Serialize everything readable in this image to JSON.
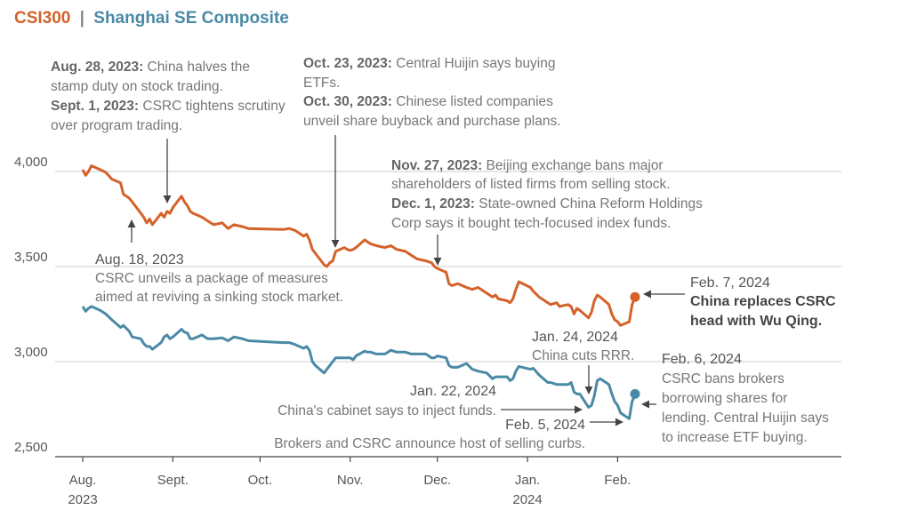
{
  "title": {
    "csi_label": "CSI300",
    "separator": "|",
    "sse_label": "Shanghai SE Composite"
  },
  "colors": {
    "csi300": "#d4622a",
    "sse": "#4a8aa6",
    "grid": "#cccccc",
    "axis": "#444444"
  },
  "chart_data": {
    "type": "line",
    "ylim": [
      2500,
      4100
    ],
    "yticks": [
      "4,000",
      "3,500",
      "3,000",
      "2,500"
    ],
    "ytick_values": [
      4000,
      3500,
      3000,
      2500
    ],
    "x_range": [
      "2023-08-01",
      "2024-02-16"
    ],
    "xticks": [
      {
        "label": "Aug.",
        "sub": "2023",
        "date": "2023-08-01"
      },
      {
        "label": "Sept.",
        "sub": "",
        "date": "2023-09-01"
      },
      {
        "label": "Oct.",
        "sub": "",
        "date": "2023-10-01"
      },
      {
        "label": "Nov.",
        "sub": "",
        "date": "2023-11-01"
      },
      {
        "label": "Dec.",
        "sub": "",
        "date": "2023-12-01"
      },
      {
        "label": "Jan.",
        "sub": "2024",
        "date": "2024-01-01"
      },
      {
        "label": "Feb.",
        "sub": "",
        "date": "2024-02-01"
      }
    ],
    "series": [
      {
        "name": "CSI300",
        "points": [
          [
            "2023-08-01",
            4010
          ],
          [
            "2023-08-02",
            3980
          ],
          [
            "2023-08-03",
            4000
          ],
          [
            "2023-08-04",
            4030
          ],
          [
            "2023-08-07",
            4010
          ],
          [
            "2023-08-09",
            3995
          ],
          [
            "2023-08-11",
            3960
          ],
          [
            "2023-08-14",
            3940
          ],
          [
            "2023-08-15",
            3880
          ],
          [
            "2023-08-16",
            3870
          ],
          [
            "2023-08-17",
            3860
          ],
          [
            "2023-08-18",
            3840
          ],
          [
            "2023-08-21",
            3780
          ],
          [
            "2023-08-22",
            3760
          ],
          [
            "2023-08-23",
            3730
          ],
          [
            "2023-08-24",
            3750
          ],
          [
            "2023-08-25",
            3720
          ],
          [
            "2023-08-28",
            3780
          ],
          [
            "2023-08-29",
            3760
          ],
          [
            "2023-08-30",
            3790
          ],
          [
            "2023-08-31",
            3780
          ],
          [
            "2023-09-01",
            3810
          ],
          [
            "2023-09-04",
            3870
          ],
          [
            "2023-09-05",
            3840
          ],
          [
            "2023-09-06",
            3820
          ],
          [
            "2023-09-07",
            3790
          ],
          [
            "2023-09-08",
            3780
          ],
          [
            "2023-09-11",
            3760
          ],
          [
            "2023-09-13",
            3740
          ],
          [
            "2023-09-15",
            3720
          ],
          [
            "2023-09-18",
            3730
          ],
          [
            "2023-09-20",
            3700
          ],
          [
            "2023-09-22",
            3720
          ],
          [
            "2023-09-25",
            3710
          ],
          [
            "2023-09-27",
            3700
          ],
          [
            "2023-10-09",
            3695
          ],
          [
            "2023-10-11",
            3700
          ],
          [
            "2023-10-13",
            3690
          ],
          [
            "2023-10-16",
            3660
          ],
          [
            "2023-10-17",
            3670
          ],
          [
            "2023-10-18",
            3640
          ],
          [
            "2023-10-19",
            3590
          ],
          [
            "2023-10-20",
            3570
          ],
          [
            "2023-10-23",
            3510
          ],
          [
            "2023-10-24",
            3500
          ],
          [
            "2023-10-25",
            3520
          ],
          [
            "2023-10-26",
            3530
          ],
          [
            "2023-10-27",
            3580
          ],
          [
            "2023-10-30",
            3600
          ],
          [
            "2023-10-31",
            3590
          ],
          [
            "2023-11-01",
            3585
          ],
          [
            "2023-11-02",
            3590
          ],
          [
            "2023-11-03",
            3600
          ],
          [
            "2023-11-06",
            3640
          ],
          [
            "2023-11-07",
            3630
          ],
          [
            "2023-11-08",
            3620
          ],
          [
            "2023-11-10",
            3610
          ],
          [
            "2023-11-13",
            3600
          ],
          [
            "2023-11-15",
            3610
          ],
          [
            "2023-11-17",
            3590
          ],
          [
            "2023-11-20",
            3580
          ],
          [
            "2023-11-22",
            3560
          ],
          [
            "2023-11-24",
            3540
          ],
          [
            "2023-11-27",
            3530
          ],
          [
            "2023-11-29",
            3520
          ],
          [
            "2023-11-30",
            3500
          ],
          [
            "2023-12-01",
            3490
          ],
          [
            "2023-12-04",
            3470
          ],
          [
            "2023-12-05",
            3410
          ],
          [
            "2023-12-06",
            3400
          ],
          [
            "2023-12-08",
            3410
          ],
          [
            "2023-12-11",
            3390
          ],
          [
            "2023-12-13",
            3380
          ],
          [
            "2023-12-15",
            3390
          ],
          [
            "2023-12-18",
            3360
          ],
          [
            "2023-12-20",
            3340
          ],
          [
            "2023-12-21",
            3350
          ],
          [
            "2023-12-22",
            3330
          ],
          [
            "2023-12-25",
            3320
          ],
          [
            "2023-12-26",
            3310
          ],
          [
            "2023-12-27",
            3330
          ],
          [
            "2023-12-28",
            3380
          ],
          [
            "2023-12-29",
            3420
          ],
          [
            "2024-01-02",
            3390
          ],
          [
            "2024-01-03",
            3370
          ],
          [
            "2024-01-05",
            3340
          ],
          [
            "2024-01-08",
            3310
          ],
          [
            "2024-01-09",
            3300
          ],
          [
            "2024-01-11",
            3310
          ],
          [
            "2024-01-12",
            3290
          ],
          [
            "2024-01-15",
            3300
          ],
          [
            "2024-01-16",
            3290
          ],
          [
            "2024-01-17",
            3250
          ],
          [
            "2024-01-18",
            3280
          ],
          [
            "2024-01-19",
            3270
          ],
          [
            "2024-01-22",
            3230
          ],
          [
            "2024-01-23",
            3260
          ],
          [
            "2024-01-24",
            3320
          ],
          [
            "2024-01-25",
            3350
          ],
          [
            "2024-01-26",
            3340
          ],
          [
            "2024-01-29",
            3300
          ],
          [
            "2024-01-30",
            3250
          ],
          [
            "2024-01-31",
            3220
          ],
          [
            "2024-02-01",
            3210
          ],
          [
            "2024-02-02",
            3190
          ],
          [
            "2024-02-05",
            3210
          ],
          [
            "2024-02-06",
            3300
          ],
          [
            "2024-02-07",
            3340
          ]
        ]
      },
      {
        "name": "Shanghai SE Composite",
        "points": [
          [
            "2023-08-01",
            3290
          ],
          [
            "2023-08-02",
            3265
          ],
          [
            "2023-08-03",
            3280
          ],
          [
            "2023-08-04",
            3290
          ],
          [
            "2023-08-07",
            3270
          ],
          [
            "2023-08-09",
            3250
          ],
          [
            "2023-08-11",
            3220
          ],
          [
            "2023-08-14",
            3180
          ],
          [
            "2023-08-15",
            3190
          ],
          [
            "2023-08-16",
            3175
          ],
          [
            "2023-08-17",
            3160
          ],
          [
            "2023-08-18",
            3130
          ],
          [
            "2023-08-21",
            3120
          ],
          [
            "2023-08-22",
            3095
          ],
          [
            "2023-08-23",
            3080
          ],
          [
            "2023-08-24",
            3080
          ],
          [
            "2023-08-25",
            3065
          ],
          [
            "2023-08-28",
            3100
          ],
          [
            "2023-08-29",
            3130
          ],
          [
            "2023-08-30",
            3140
          ],
          [
            "2023-08-31",
            3120
          ],
          [
            "2023-09-01",
            3130
          ],
          [
            "2023-09-04",
            3170
          ],
          [
            "2023-09-05",
            3155
          ],
          [
            "2023-09-06",
            3150
          ],
          [
            "2023-09-07",
            3120
          ],
          [
            "2023-09-08",
            3120
          ],
          [
            "2023-09-11",
            3140
          ],
          [
            "2023-09-13",
            3120
          ],
          [
            "2023-09-15",
            3120
          ],
          [
            "2023-09-18",
            3125
          ],
          [
            "2023-09-20",
            3110
          ],
          [
            "2023-09-22",
            3130
          ],
          [
            "2023-09-25",
            3120
          ],
          [
            "2023-09-27",
            3110
          ],
          [
            "2023-10-09",
            3100
          ],
          [
            "2023-10-11",
            3100
          ],
          [
            "2023-10-13",
            3090
          ],
          [
            "2023-10-16",
            3070
          ],
          [
            "2023-10-17",
            3080
          ],
          [
            "2023-10-18",
            3060
          ],
          [
            "2023-10-19",
            3000
          ],
          [
            "2023-10-20",
            2980
          ],
          [
            "2023-10-23",
            2940
          ],
          [
            "2023-10-24",
            2960
          ],
          [
            "2023-10-25",
            2980
          ],
          [
            "2023-10-26",
            3000
          ],
          [
            "2023-10-27",
            3020
          ],
          [
            "2023-10-30",
            3020
          ],
          [
            "2023-10-31",
            3020
          ],
          [
            "2023-11-01",
            3020
          ],
          [
            "2023-11-02",
            3010
          ],
          [
            "2023-11-03",
            3030
          ],
          [
            "2023-11-06",
            3055
          ],
          [
            "2023-11-07",
            3050
          ],
          [
            "2023-11-08",
            3050
          ],
          [
            "2023-11-10",
            3040
          ],
          [
            "2023-11-13",
            3040
          ],
          [
            "2023-11-15",
            3060
          ],
          [
            "2023-11-17",
            3050
          ],
          [
            "2023-11-20",
            3050
          ],
          [
            "2023-11-22",
            3040
          ],
          [
            "2023-11-24",
            3040
          ],
          [
            "2023-11-27",
            3040
          ],
          [
            "2023-11-29",
            3020
          ],
          [
            "2023-11-30",
            3020
          ],
          [
            "2023-12-01",
            3030
          ],
          [
            "2023-12-04",
            3020
          ],
          [
            "2023-12-05",
            2980
          ],
          [
            "2023-12-06",
            2970
          ],
          [
            "2023-12-08",
            2970
          ],
          [
            "2023-12-11",
            2990
          ],
          [
            "2023-12-13",
            2960
          ],
          [
            "2023-12-15",
            2950
          ],
          [
            "2023-12-18",
            2940
          ],
          [
            "2023-12-20",
            2910
          ],
          [
            "2023-12-21",
            2920
          ],
          [
            "2023-12-22",
            2920
          ],
          [
            "2023-12-25",
            2920
          ],
          [
            "2023-12-26",
            2900
          ],
          [
            "2023-12-27",
            2910
          ],
          [
            "2023-12-28",
            2950
          ],
          [
            "2023-12-29",
            2975
          ],
          [
            "2024-01-02",
            2960
          ],
          [
            "2024-01-03",
            2965
          ],
          [
            "2024-01-05",
            2930
          ],
          [
            "2024-01-08",
            2890
          ],
          [
            "2024-01-09",
            2890
          ],
          [
            "2024-01-11",
            2880
          ],
          [
            "2024-01-12",
            2880
          ],
          [
            "2024-01-15",
            2880
          ],
          [
            "2024-01-16",
            2890
          ],
          [
            "2024-01-17",
            2840
          ],
          [
            "2024-01-18",
            2830
          ],
          [
            "2024-01-19",
            2830
          ],
          [
            "2024-01-22",
            2760
          ],
          [
            "2024-01-23",
            2770
          ],
          [
            "2024-01-24",
            2820
          ],
          [
            "2024-01-25",
            2900
          ],
          [
            "2024-01-26",
            2910
          ],
          [
            "2024-01-29",
            2880
          ],
          [
            "2024-01-30",
            2830
          ],
          [
            "2024-01-31",
            2790
          ],
          [
            "2024-02-01",
            2770
          ],
          [
            "2024-02-02",
            2730
          ],
          [
            "2024-02-05",
            2700
          ],
          [
            "2024-02-06",
            2790
          ],
          [
            "2024-02-07",
            2830
          ]
        ]
      }
    ]
  },
  "annotations": {
    "aug28_date": "Aug. 28, 2023:",
    "aug28_text_a": " China halves the",
    "aug28_text_b": "stamp duty on stock trading.",
    "sep1_date": "Sept. 1, 2023:",
    "sep1_text_a": " CSRC tightens scrutiny",
    "sep1_text_b": "over program trading.",
    "oct23_date": "Oct. 23, 2023:",
    "oct23_text_a": " Central Huijin says buying",
    "oct23_text_b": "ETFs.",
    "oct30_date": "Oct. 30, 2023:",
    "oct30_text_a": " Chinese listed companies",
    "oct30_text_b": "unveil share buyback and purchase plans.",
    "nov27_date": "Nov. 27, 2023:",
    "nov27_text_a": " Beijing exchange bans major",
    "nov27_text_b": "shareholders of listed firms from selling stock.",
    "dec1_date": "Dec. 1, 2023:",
    "dec1_text_a": " State-owned China Reform Holdings",
    "dec1_text_b": "Corp says it bought tech-focused index funds.",
    "aug18_date": "Aug. 18, 2023",
    "aug18_text_a": "CSRC unveils a package of measures",
    "aug18_text_b": "aimed at reviving a sinking stock market.",
    "feb7_date": "Feb. 7, 2024",
    "feb7_text_a": "China replaces CSRC",
    "feb7_text_b": "head with Wu Qing.",
    "jan24_date": "Jan. 24, 2024",
    "jan24_text": "China cuts RRR.",
    "feb6_date": "Feb. 6, 2024",
    "feb6_text_a": "CSRC bans brokers",
    "feb6_text_b": "borrowing shares for",
    "feb6_text_c": "lending. Central Huijin says",
    "feb6_text_d": "to increase ETF buying.",
    "jan22_date": "Jan. 22, 2024",
    "jan22_text": "China's cabinet says to inject funds.",
    "feb5_date": "Feb. 5, 2024",
    "feb5_text": "Brokers and CSRC announce host of selling curbs."
  }
}
